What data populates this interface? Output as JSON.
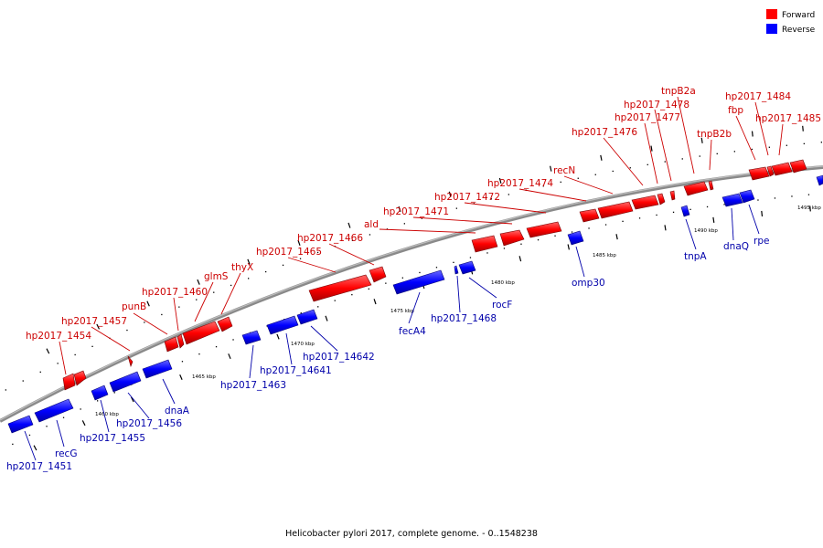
{
  "caption": "Helicobacter pylori 2017, complete genome. - 0..1548238",
  "legend": {
    "forward_label": "Forward",
    "reverse_label": "Reverse",
    "forward_color": "#ff0000",
    "reverse_color": "#0000ff"
  },
  "ticks": [
    "1460 kbp",
    "1465 kbp",
    "1470 kbp",
    "1475 kbp",
    "1480 kbp",
    "1485 kbp",
    "1490 kbp",
    "1495 kbp"
  ],
  "forward_labels": [
    "hp2017_1454",
    "hp2017_1457",
    "punB",
    "hp2017_1460",
    "glmS",
    "thyX",
    "hp2017_1465",
    "hp2017_1466",
    "ald",
    "hp2017_1471",
    "hp2017_1472",
    "hp2017_1474",
    "recN",
    "hp2017_1476",
    "hp2017_1477",
    "hp2017_1478",
    "tnpB2a",
    "tnpB2b",
    "fbp",
    "hp2017_1484",
    "hp2017_1485"
  ],
  "reverse_labels": [
    "hp2017_1451",
    "recG",
    "hp2017_1455",
    "hp2017_1456",
    "dnaA",
    "hp2017_1463",
    "hp2017_14641",
    "hp2017_14642",
    "fecA4",
    "hp2017_1468",
    "rocF",
    "omp30",
    "tnpA",
    "dnaQ",
    "rpe"
  ]
}
